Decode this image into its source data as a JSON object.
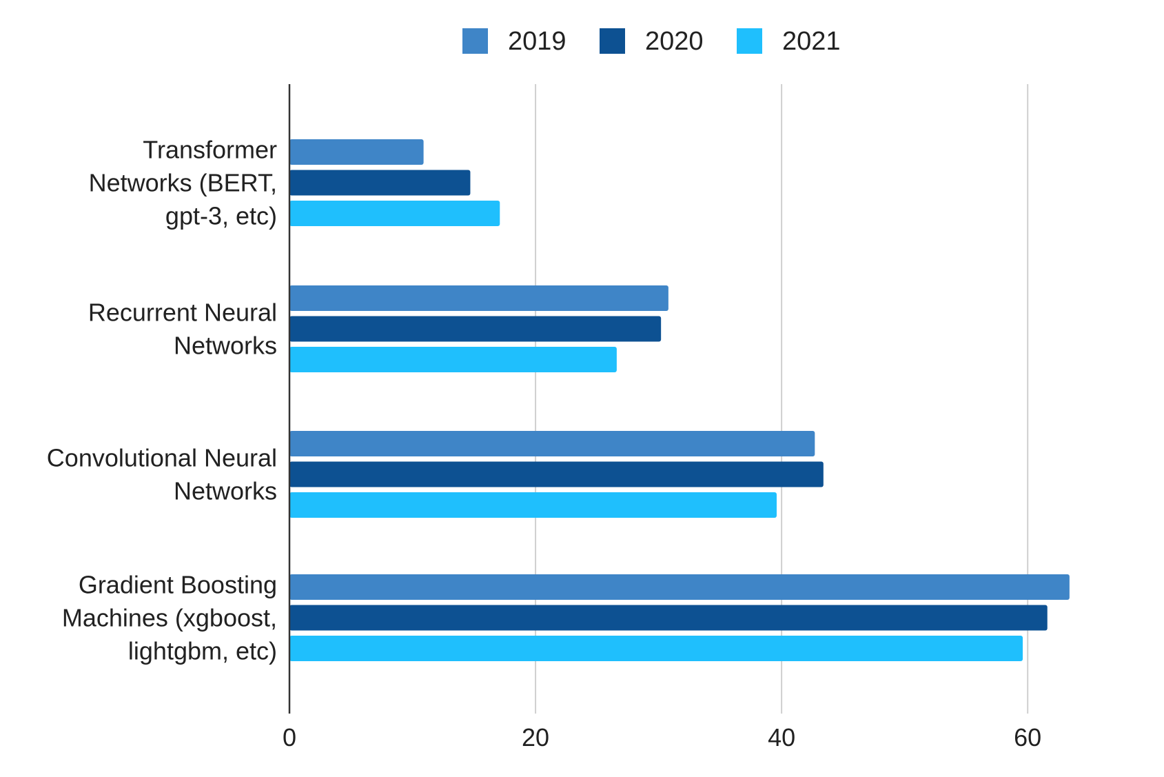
{
  "chart_data": {
    "type": "bar",
    "orientation": "horizontal",
    "title": "",
    "xlabel": "",
    "ylabel": "",
    "categories": [
      [
        "Transformer",
        "Networks (BERT,",
        "gpt-3, etc)"
      ],
      [
        "Recurrent Neural",
        "Networks"
      ],
      [
        "Convolutional Neural",
        "Networks"
      ],
      [
        "Gradient Boosting",
        "Machines (xgboost,",
        "lightgbm, etc)"
      ]
    ],
    "series": [
      {
        "name": "2019",
        "color": "#3f85c7",
        "values": [
          10.9,
          30.8,
          42.7,
          63.4
        ]
      },
      {
        "name": "2020",
        "color": "#0d5192",
        "values": [
          14.7,
          30.2,
          43.4,
          61.6
        ]
      },
      {
        "name": "2021",
        "color": "#1fbffd",
        "values": [
          17.1,
          26.6,
          39.6,
          59.6
        ]
      }
    ],
    "xlim": [
      0,
      68
    ],
    "xticks": [
      0,
      20,
      40,
      60
    ],
    "grid": true,
    "legend_position": "top"
  }
}
